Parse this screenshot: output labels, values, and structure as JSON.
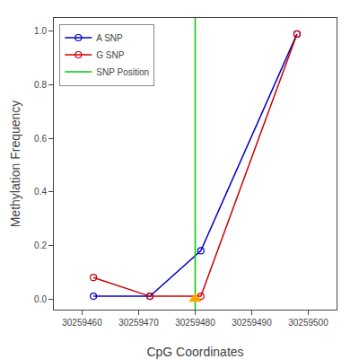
{
  "chart_data": {
    "type": "line",
    "xlabel": "CpG Coordinates",
    "ylabel": "Methylation Frequency",
    "series": [
      {
        "name": "A SNP",
        "type": "line",
        "color": "#0000CC",
        "marker": "open circle",
        "line_style": "solid",
        "x": [
          30259462,
          30259472,
          30259481,
          30259498
        ],
        "values": [
          0.01,
          0.01,
          0.18,
          0.99
        ]
      },
      {
        "name": "G SNP",
        "type": "line",
        "color": "#CC0000",
        "marker": "open circle",
        "line_style": "solid",
        "x": [
          30259462,
          30259472,
          30259481,
          30259498
        ],
        "values": [
          0.08,
          0.01,
          0.01,
          0.99
        ]
      },
      {
        "name": "SNP Position",
        "type": "vline",
        "color": "#00CC00",
        "line_style": "solid",
        "x": [
          30259480
        ]
      },
      {
        "type": "scatter",
        "color": "#FFA500",
        "marker": "triangle",
        "x": [
          30259480
        ],
        "values": [
          0.0
        ]
      }
    ],
    "xlim": [
      30259455,
      30259505
    ],
    "xticks": [
      30259460,
      30259470,
      30259480,
      30259490,
      30259500
    ],
    "ylim": [
      -0.04,
      1.05
    ],
    "yticks": [
      {
        "value": 0.0,
        "label": "0.0"
      },
      0.2,
      0.4,
      0.6,
      0.8,
      {
        "value": 1.0,
        "label": "1.0"
      }
    ],
    "grid": false,
    "legend": "upper left"
  }
}
